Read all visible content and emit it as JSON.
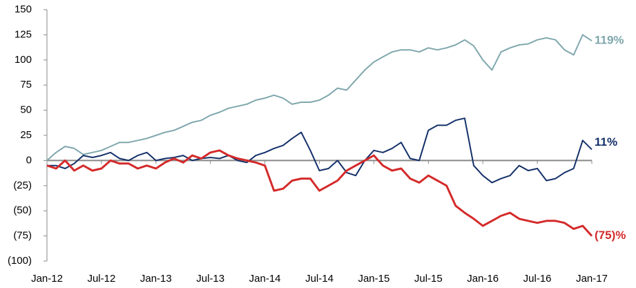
{
  "chart_data": {
    "type": "line",
    "categories": [
      "Jan-12",
      null,
      null,
      null,
      null,
      null,
      "Jul-12",
      null,
      null,
      null,
      null,
      null,
      "Jan-13",
      null,
      null,
      null,
      null,
      null,
      "Jul-13",
      null,
      null,
      null,
      null,
      null,
      "Jan-14",
      null,
      null,
      null,
      null,
      null,
      "Jul-14",
      null,
      null,
      null,
      null,
      null,
      "Jan-15",
      null,
      null,
      null,
      null,
      null,
      "Jul-15",
      null,
      null,
      null,
      null,
      null,
      "Jan-16",
      null,
      null,
      null,
      null,
      null,
      "Jul-16",
      null,
      null,
      null,
      null,
      null,
      "Jan-17"
    ],
    "series": [
      {
        "color": "#7fa7ad",
        "end_label": "119%",
        "values": [
          0,
          8,
          14,
          12,
          6,
          8,
          10,
          14,
          18,
          18,
          20,
          22,
          25,
          28,
          30,
          34,
          38,
          40,
          45,
          48,
          52,
          54,
          56,
          60,
          62,
          65,
          62,
          56,
          58,
          58,
          60,
          65,
          72,
          70,
          80,
          90,
          98,
          103,
          108,
          110,
          110,
          108,
          112,
          110,
          112,
          115,
          120,
          114,
          100,
          90,
          108,
          112,
          115,
          116,
          120,
          122,
          120,
          110,
          105,
          125,
          119
        ]
      },
      {
        "color": "#14306a",
        "end_label": "11%",
        "values": [
          -5,
          -5,
          -8,
          -3,
          5,
          3,
          5,
          8,
          2,
          0,
          5,
          8,
          0,
          2,
          3,
          5,
          0,
          2,
          3,
          2,
          5,
          0,
          -2,
          5,
          8,
          12,
          15,
          22,
          28,
          10,
          -10,
          -8,
          0,
          -12,
          -15,
          0,
          10,
          8,
          12,
          18,
          2,
          0,
          30,
          35,
          35,
          40,
          42,
          -5,
          -15,
          -22,
          -18,
          -15,
          -5,
          -10,
          -8,
          -20,
          -18,
          -12,
          -8,
          20,
          11
        ]
      },
      {
        "color": "#d42a2a",
        "end_label": "(75)%",
        "values": [
          -5,
          -8,
          0,
          -10,
          -5,
          -10,
          -8,
          0,
          -3,
          -3,
          -8,
          -5,
          -8,
          -2,
          2,
          -2,
          5,
          2,
          8,
          10,
          5,
          2,
          0,
          -2,
          -5,
          -30,
          -28,
          -20,
          -18,
          -18,
          -30,
          -25,
          -20,
          -10,
          -5,
          0,
          5,
          -5,
          -10,
          -8,
          -18,
          -22,
          -15,
          -20,
          -25,
          -45,
          -52,
          -58,
          -65,
          -60,
          -55,
          -52,
          -58,
          -60,
          -62,
          -60,
          -60,
          -62,
          -68,
          -65,
          -75
        ]
      }
    ],
    "ylim": [
      -100,
      150
    ],
    "yticks": [
      {
        "value": -100,
        "label": "(100)"
      },
      {
        "value": -75,
        "label": "(75)"
      },
      {
        "value": -50,
        "label": "(50)"
      },
      {
        "value": -25,
        "label": "(25)"
      },
      0,
      25,
      50,
      75,
      100,
      125,
      150
    ]
  }
}
